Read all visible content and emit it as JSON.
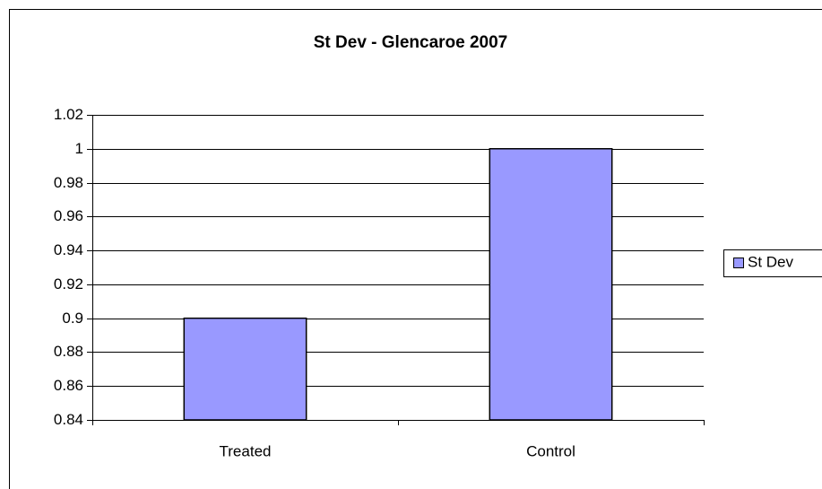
{
  "chart_data": {
    "type": "bar",
    "title": "St Dev - Glencaroe 2007",
    "categories": [
      "Treated",
      "Control"
    ],
    "series": [
      {
        "name": "St Dev",
        "color": "#9999ff",
        "values": [
          0.9,
          1
        ]
      }
    ],
    "ylim": [
      0.84,
      1.02
    ],
    "yticks": [
      0.84,
      0.86,
      0.88,
      0.9,
      0.92,
      0.94,
      0.96,
      0.98,
      1,
      1.02
    ],
    "grid": true,
    "legend": "right"
  }
}
